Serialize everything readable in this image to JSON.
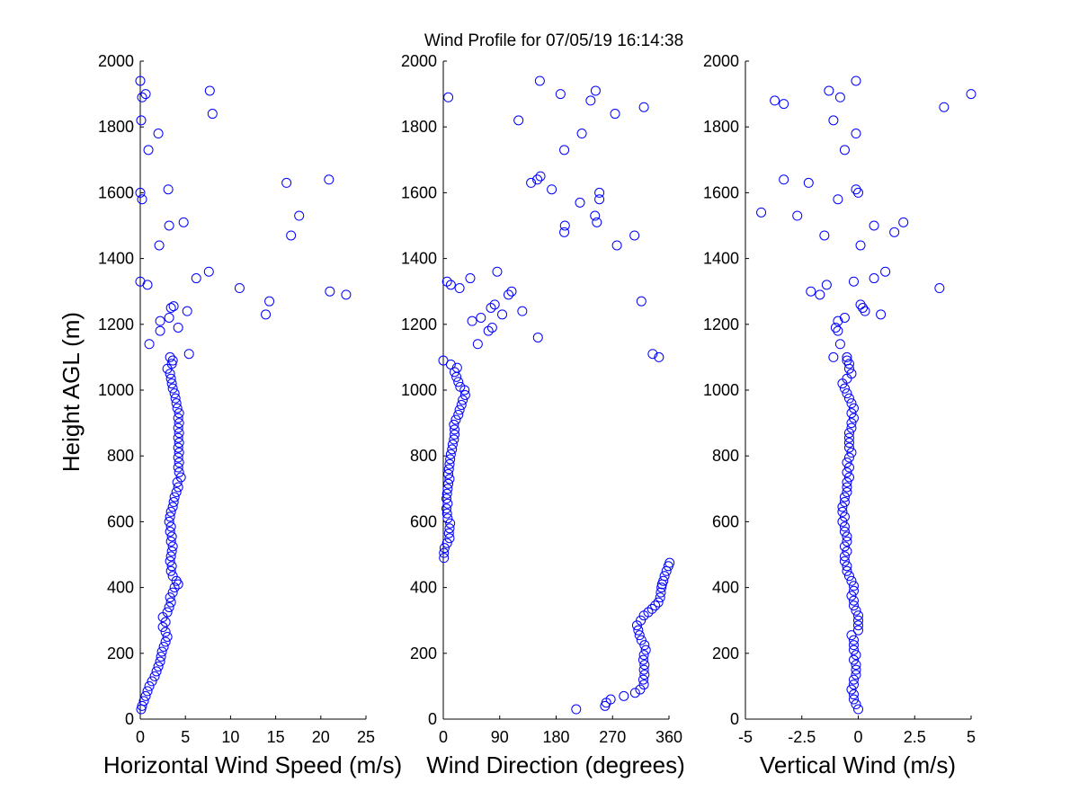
{
  "title": "Wind Profile for  07/05/19 16:14:38",
  "ylabel": "Height AGL (m)",
  "marker_color": "#0000ff",
  "chart_data": [
    {
      "type": "scatter",
      "xlabel": "Horizontal Wind Speed (m/s)",
      "xlim": [
        0,
        25
      ],
      "ylim": [
        0,
        2000
      ],
      "xticks": [
        0,
        5,
        10,
        15,
        20,
        25
      ],
      "xtick_labels": [
        "0",
        "5",
        "10",
        "15",
        "20",
        "25"
      ],
      "yticks": [
        0,
        200,
        400,
        600,
        800,
        1000,
        1200,
        1400,
        1600,
        1800,
        2000
      ],
      "ytick_labels": [
        "0",
        "200",
        "400",
        "600",
        "800",
        "1000",
        "1200",
        "1400",
        "1600",
        "1800",
        "2000"
      ],
      "points": [
        [
          0.1,
          30
        ],
        [
          0.2,
          40
        ],
        [
          0.4,
          55
        ],
        [
          0.6,
          70
        ],
        [
          0.8,
          85
        ],
        [
          1,
          100
        ],
        [
          1.3,
          115
        ],
        [
          1.6,
          130
        ],
        [
          1.8,
          145
        ],
        [
          2,
          160
        ],
        [
          2.2,
          175
        ],
        [
          2.3,
          190
        ],
        [
          2.4,
          205
        ],
        [
          2.6,
          220
        ],
        [
          2.8,
          235
        ],
        [
          3,
          250
        ],
        [
          2.8,
          265
        ],
        [
          2.5,
          280
        ],
        [
          2.8,
          295
        ],
        [
          2.5,
          310
        ],
        [
          3,
          325
        ],
        [
          3.2,
          340
        ],
        [
          3.4,
          355
        ],
        [
          3.3,
          370
        ],
        [
          3.6,
          385
        ],
        [
          3.8,
          400
        ],
        [
          4.2,
          410
        ],
        [
          4,
          420
        ],
        [
          3.6,
          435
        ],
        [
          3.4,
          450
        ],
        [
          3.5,
          465
        ],
        [
          3.3,
          480
        ],
        [
          3.4,
          495
        ],
        [
          3.5,
          510
        ],
        [
          3.6,
          525
        ],
        [
          3.4,
          540
        ],
        [
          3.5,
          555
        ],
        [
          3.3,
          570
        ],
        [
          3.4,
          585
        ],
        [
          3.2,
          600
        ],
        [
          3.3,
          615
        ],
        [
          3.4,
          630
        ],
        [
          3.6,
          645
        ],
        [
          3.7,
          660
        ],
        [
          3.8,
          675
        ],
        [
          4,
          690
        ],
        [
          4.2,
          705
        ],
        [
          4.1,
          720
        ],
        [
          4.5,
          735
        ],
        [
          4.3,
          750
        ],
        [
          4.2,
          765
        ],
        [
          4.3,
          780
        ],
        [
          4.2,
          795
        ],
        [
          4.3,
          810
        ],
        [
          4.2,
          825
        ],
        [
          4.3,
          840
        ],
        [
          4.2,
          855
        ],
        [
          4.3,
          870
        ],
        [
          4.2,
          885
        ],
        [
          4.3,
          900
        ],
        [
          4.2,
          915
        ],
        [
          4.3,
          930
        ],
        [
          4.1,
          945
        ],
        [
          4,
          960
        ],
        [
          3.9,
          975
        ],
        [
          3.8,
          990
        ],
        [
          3.6,
          1005
        ],
        [
          3.5,
          1020
        ],
        [
          3.4,
          1035
        ],
        [
          3.3,
          1050
        ],
        [
          3,
          1065
        ],
        [
          3.5,
          1080
        ],
        [
          3.6,
          1090
        ],
        [
          3.3,
          1100
        ],
        [
          5.4,
          1110
        ],
        [
          1,
          1140
        ],
        [
          2.2,
          1180
        ],
        [
          4.2,
          1190
        ],
        [
          2.2,
          1210
        ],
        [
          3.2,
          1220
        ],
        [
          5.2,
          1240
        ],
        [
          3.4,
          1250
        ],
        [
          3.7,
          1255
        ],
        [
          13.9,
          1230
        ],
        [
          14.3,
          1270
        ],
        [
          11,
          1310
        ],
        [
          0,
          1330
        ],
        [
          0.8,
          1320
        ],
        [
          6.2,
          1340
        ],
        [
          7.6,
          1360
        ],
        [
          21,
          1300
        ],
        [
          22.8,
          1290
        ],
        [
          2.1,
          1440
        ],
        [
          16.7,
          1470
        ],
        [
          3.2,
          1500
        ],
        [
          4.8,
          1510
        ],
        [
          17.6,
          1530
        ],
        [
          0.2,
          1580
        ],
        [
          0,
          1600
        ],
        [
          3.1,
          1610
        ],
        [
          16.2,
          1630
        ],
        [
          20.9,
          1640
        ],
        [
          0.9,
          1730
        ],
        [
          2,
          1780
        ],
        [
          0.1,
          1820
        ],
        [
          8,
          1840
        ],
        [
          0.2,
          1890
        ],
        [
          0.6,
          1900
        ],
        [
          7.7,
          1910
        ],
        [
          0,
          1940
        ]
      ]
    },
    {
      "type": "scatter",
      "xlabel": "Wind Direction (degrees)",
      "xlim": [
        0,
        360
      ],
      "ylim": [
        0,
        2000
      ],
      "xticks": [
        0,
        90,
        180,
        270,
        360
      ],
      "xtick_labels": [
        "0",
        "90",
        "180",
        "270",
        "360"
      ],
      "yticks": [
        0,
        200,
        400,
        600,
        800,
        1000,
        1200,
        1400,
        1600,
        1800,
        2000
      ],
      "ytick_labels": [
        "0",
        "200",
        "400",
        "600",
        "800",
        "1000",
        "1200",
        "1400",
        "1600",
        "1800",
        "2000"
      ],
      "points": [
        [
          212,
          30
        ],
        [
          258,
          40
        ],
        [
          260,
          50
        ],
        [
          267,
          60
        ],
        [
          288,
          70
        ],
        [
          306,
          80
        ],
        [
          314,
          90
        ],
        [
          320,
          105
        ],
        [
          319,
          120
        ],
        [
          321,
          135
        ],
        [
          320,
          150
        ],
        [
          321,
          165
        ],
        [
          319,
          180
        ],
        [
          320,
          195
        ],
        [
          323,
          210
        ],
        [
          321,
          225
        ],
        [
          316,
          240
        ],
        [
          313,
          255
        ],
        [
          311,
          270
        ],
        [
          309,
          285
        ],
        [
          315,
          300
        ],
        [
          320,
          315
        ],
        [
          327,
          325
        ],
        [
          333,
          335
        ],
        [
          338,
          345
        ],
        [
          343,
          355
        ],
        [
          346,
          370
        ],
        [
          347,
          385
        ],
        [
          348,
          400
        ],
        [
          349,
          410
        ],
        [
          351,
          420
        ],
        [
          353,
          435
        ],
        [
          356,
          450
        ],
        [
          359,
          465
        ],
        [
          361,
          475
        ],
        [
          1,
          490
        ],
        [
          1,
          505
        ],
        [
          2,
          520
        ],
        [
          6,
          535
        ],
        [
          10,
          550
        ],
        [
          9,
          565
        ],
        [
          10,
          580
        ],
        [
          11,
          595
        ],
        [
          7,
          610
        ],
        [
          6,
          625
        ],
        [
          5,
          640
        ],
        [
          7,
          655
        ],
        [
          5,
          670
        ],
        [
          6,
          685
        ],
        [
          7,
          700
        ],
        [
          8,
          715
        ],
        [
          10,
          730
        ],
        [
          8,
          745
        ],
        [
          9,
          760
        ],
        [
          10,
          775
        ],
        [
          11,
          790
        ],
        [
          12,
          805
        ],
        [
          14,
          820
        ],
        [
          15,
          835
        ],
        [
          17,
          850
        ],
        [
          18,
          865
        ],
        [
          18,
          880
        ],
        [
          17,
          895
        ],
        [
          20,
          910
        ],
        [
          24,
          925
        ],
        [
          26,
          940
        ],
        [
          29,
          955
        ],
        [
          31,
          970
        ],
        [
          35,
          985
        ],
        [
          34,
          1000
        ],
        [
          27,
          1010
        ],
        [
          24,
          1025
        ],
        [
          21,
          1040
        ],
        [
          18,
          1055
        ],
        [
          22,
          1068
        ],
        [
          12,
          1078
        ],
        [
          0,
          1090
        ],
        [
          334,
          1110
        ],
        [
          344,
          1100
        ],
        [
          55,
          1140
        ],
        [
          151,
          1160
        ],
        [
          72,
          1180
        ],
        [
          46,
          1210
        ],
        [
          78,
          1190
        ],
        [
          60,
          1220
        ],
        [
          94,
          1230
        ],
        [
          126,
          1240
        ],
        [
          76,
          1250
        ],
        [
          82,
          1260
        ],
        [
          316,
          1270
        ],
        [
          104,
          1290
        ],
        [
          109,
          1300
        ],
        [
          26,
          1310
        ],
        [
          12,
          1320
        ],
        [
          6,
          1330
        ],
        [
          43,
          1340
        ],
        [
          86,
          1360
        ],
        [
          277,
          1440
        ],
        [
          305,
          1470
        ],
        [
          193,
          1480
        ],
        [
          194,
          1500
        ],
        [
          245,
          1510
        ],
        [
          242,
          1530
        ],
        [
          218,
          1570
        ],
        [
          249,
          1580
        ],
        [
          249,
          1600
        ],
        [
          173,
          1610
        ],
        [
          140,
          1630
        ],
        [
          150,
          1640
        ],
        [
          155,
          1650
        ],
        [
          193,
          1730
        ],
        [
          221,
          1780
        ],
        [
          120,
          1820
        ],
        [
          274,
          1840
        ],
        [
          320,
          1860
        ],
        [
          8,
          1890
        ],
        [
          187,
          1900
        ],
        [
          235,
          1880
        ],
        [
          243,
          1910
        ],
        [
          154,
          1940
        ]
      ]
    },
    {
      "type": "scatter",
      "xlabel": "Vertical Wind (m/s)",
      "xlim": [
        -5,
        5
      ],
      "ylim": [
        0,
        2000
      ],
      "xticks": [
        -5,
        -2.5,
        0,
        2.5,
        5
      ],
      "xtick_labels": [
        "-5",
        "-2.5",
        "0",
        "2.5",
        "5"
      ],
      "yticks": [
        0,
        200,
        400,
        600,
        800,
        1000,
        1200,
        1400,
        1600,
        1800,
        2000
      ],
      "ytick_labels": [
        "0",
        "200",
        "400",
        "600",
        "800",
        "1000",
        "1200",
        "1400",
        "1600",
        "1800",
        "2000"
      ],
      "points": [
        [
          0,
          30
        ],
        [
          -0.1,
          45
        ],
        [
          -0.2,
          60
        ],
        [
          -0.2,
          75
        ],
        [
          -0.3,
          90
        ],
        [
          -0.2,
          105
        ],
        [
          -0.2,
          120
        ],
        [
          -0.1,
          135
        ],
        [
          -0.1,
          150
        ],
        [
          -0.1,
          165
        ],
        [
          -0.2,
          180
        ],
        [
          -0.1,
          195
        ],
        [
          -0.2,
          210
        ],
        [
          -0.2,
          225
        ],
        [
          -0.2,
          240
        ],
        [
          -0.3,
          255
        ],
        [
          0,
          270
        ],
        [
          0,
          285
        ],
        [
          0,
          300
        ],
        [
          0,
          315
        ],
        [
          -0.1,
          330
        ],
        [
          -0.2,
          345
        ],
        [
          -0.2,
          360
        ],
        [
          -0.3,
          375
        ],
        [
          -0.2,
          390
        ],
        [
          -0.2,
          405
        ],
        [
          -0.3,
          420
        ],
        [
          -0.4,
          435
        ],
        [
          -0.5,
          450
        ],
        [
          -0.5,
          465
        ],
        [
          -0.6,
          480
        ],
        [
          -0.6,
          495
        ],
        [
          -0.5,
          510
        ],
        [
          -0.6,
          525
        ],
        [
          -0.5,
          540
        ],
        [
          -0.5,
          555
        ],
        [
          -0.6,
          570
        ],
        [
          -0.6,
          585
        ],
        [
          -0.7,
          600
        ],
        [
          -0.6,
          615
        ],
        [
          -0.7,
          630
        ],
        [
          -0.7,
          645
        ],
        [
          -0.6,
          660
        ],
        [
          -0.6,
          675
        ],
        [
          -0.5,
          690
        ],
        [
          -0.5,
          705
        ],
        [
          -0.5,
          720
        ],
        [
          -0.4,
          735
        ],
        [
          -0.5,
          750
        ],
        [
          -0.4,
          765
        ],
        [
          -0.5,
          780
        ],
        [
          -0.4,
          795
        ],
        [
          -0.3,
          810
        ],
        [
          -0.4,
          825
        ],
        [
          -0.4,
          840
        ],
        [
          -0.4,
          855
        ],
        [
          -0.4,
          870
        ],
        [
          -0.3,
          885
        ],
        [
          -0.3,
          900
        ],
        [
          -0.2,
          915
        ],
        [
          -0.3,
          930
        ],
        [
          -0.2,
          945
        ],
        [
          -0.3,
          960
        ],
        [
          -0.4,
          975
        ],
        [
          -0.5,
          990
        ],
        [
          -0.6,
          1005
        ],
        [
          -0.7,
          1020
        ],
        [
          -0.5,
          1035
        ],
        [
          -0.3,
          1050
        ],
        [
          -0.4,
          1065
        ],
        [
          -0.4,
          1080
        ],
        [
          -0.5,
          1090
        ],
        [
          -0.5,
          1100
        ],
        [
          -1.1,
          1100
        ],
        [
          -0.8,
          1140
        ],
        [
          -0.9,
          1180
        ],
        [
          -1,
          1190
        ],
        [
          -0.9,
          1210
        ],
        [
          -0.6,
          1220
        ],
        [
          1,
          1230
        ],
        [
          0.1,
          1260
        ],
        [
          0.3,
          1240
        ],
        [
          0.2,
          1250
        ],
        [
          -1.7,
          1290
        ],
        [
          -2.1,
          1300
        ],
        [
          -1.4,
          1320
        ],
        [
          3.6,
          1310
        ],
        [
          -0.2,
          1330
        ],
        [
          0.7,
          1340
        ],
        [
          1.2,
          1360
        ],
        [
          0.1,
          1440
        ],
        [
          -1.5,
          1470
        ],
        [
          1.6,
          1480
        ],
        [
          0.7,
          1500
        ],
        [
          2,
          1510
        ],
        [
          -2.7,
          1530
        ],
        [
          -4.3,
          1540
        ],
        [
          -0.9,
          1580
        ],
        [
          0,
          1600
        ],
        [
          -0.1,
          1610
        ],
        [
          -2.2,
          1630
        ],
        [
          -3.3,
          1640
        ],
        [
          -0.6,
          1730
        ],
        [
          -0.1,
          1780
        ],
        [
          -1.1,
          1820
        ],
        [
          3.8,
          1860
        ],
        [
          -3.3,
          1870
        ],
        [
          -3.7,
          1880
        ],
        [
          -0.8,
          1890
        ],
        [
          5,
          1900
        ],
        [
          -1.3,
          1910
        ],
        [
          -0.1,
          1940
        ]
      ]
    }
  ]
}
